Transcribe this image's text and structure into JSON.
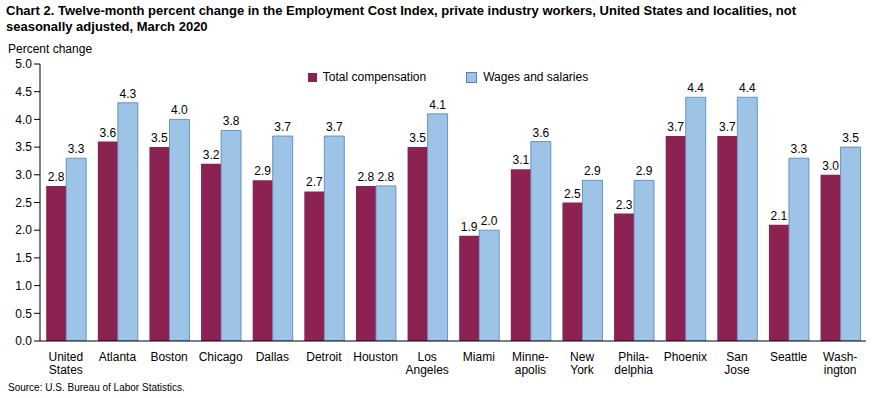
{
  "chart_data": {
    "type": "bar",
    "title": "Chart 2. Twelve-month percent change in the Employment Cost Index, private industry workers, United States and localities, not seasonally adjusted, March 2020",
    "y_label": "Percent change",
    "source": "Source: U.S. Bureau of Labor Statistics.",
    "categories": [
      "United\nStates",
      "Atlanta",
      "Boston",
      "Chicago",
      "Dallas",
      "Detroit",
      "Houston",
      "Los\nAngeles",
      "Miami",
      "Minne-\napolis",
      "New\nYork",
      "Phila-\ndelphia",
      "Phoenix",
      "San\nJose",
      "Seattle",
      "Wash-\nington"
    ],
    "series": [
      {
        "name": "Total compensation",
        "color": "#8b2252",
        "values": [
          2.8,
          3.6,
          3.5,
          3.2,
          2.9,
          2.7,
          2.8,
          3.5,
          1.9,
          3.1,
          2.5,
          2.3,
          3.7,
          3.7,
          2.1,
          3.0
        ],
        "value_labels": [
          "2.8",
          "3.6",
          "3.5",
          "3.2",
          "2.9",
          "2.7",
          "2.8",
          "3.5",
          "1.9",
          "3.1",
          "2.5",
          "2.3",
          "3.7",
          "3.7",
          "2.1",
          "3.0"
        ]
      },
      {
        "name": "Wages and salaries",
        "color": "#9dc3e6",
        "values": [
          3.3,
          4.3,
          4.0,
          3.8,
          3.7,
          3.7,
          2.8,
          4.1,
          2.0,
          3.6,
          2.9,
          2.9,
          4.4,
          4.4,
          3.3,
          3.5
        ],
        "value_labels": [
          "3.3",
          "4.3",
          "4.0",
          "3.8",
          "3.7",
          "3.7",
          "2.8",
          "4.1",
          "2.0",
          "3.6",
          "2.9",
          "2.9",
          "4.4",
          "4.4",
          "3.3",
          "3.5"
        ]
      }
    ],
    "ylim": [
      0,
      5
    ],
    "yticks": [
      {
        "value": 0,
        "label": "0.0"
      },
      {
        "value": 0.5,
        "label": "0.5"
      },
      {
        "value": 1,
        "label": "1.0"
      },
      {
        "value": 1.5,
        "label": "1.5"
      },
      {
        "value": 2,
        "label": "2.0"
      },
      {
        "value": 2.5,
        "label": "2.5"
      },
      {
        "value": 3,
        "label": "3.0"
      },
      {
        "value": 3.5,
        "label": "3.5"
      },
      {
        "value": 4,
        "label": "4.0"
      },
      {
        "value": 4.5,
        "label": "4.5"
      },
      {
        "value": 5,
        "label": "5.0"
      }
    ],
    "grid": false,
    "legend": "top",
    "data_labels": true
  }
}
